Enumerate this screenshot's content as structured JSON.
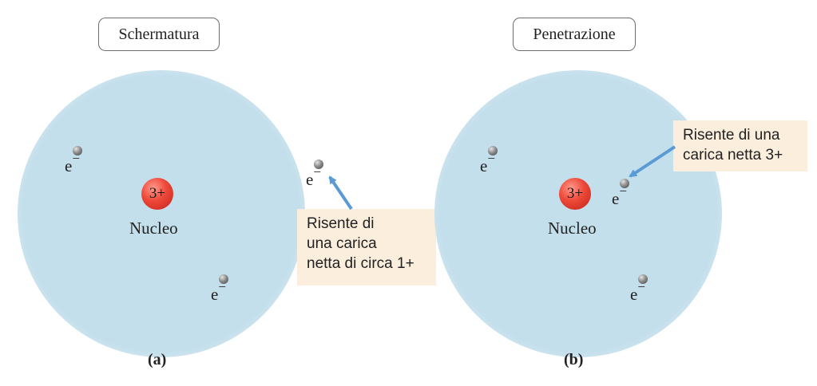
{
  "panel_a": {
    "title": "Schermatura",
    "nucleus_charge": "3+",
    "nucleus_label": "Nucleo",
    "electron_symbol": "e",
    "electron_sign": "−",
    "callout": "Risente di\nuna carica\nnetta di circa 1+",
    "label": "(a)"
  },
  "panel_b": {
    "title": "Penetrazione",
    "nucleus_charge": "3+",
    "nucleus_label": "Nucleo",
    "electron_symbol": "e",
    "electron_sign": "−",
    "callout": "Risente di una\ncarica netta 3+",
    "label": "(b)"
  },
  "colors": {
    "cloud": "#c4dfec",
    "nucleus": "#ef4b3b",
    "callout_bg": "#fbeedd",
    "arrow": "#5b9bd5"
  }
}
